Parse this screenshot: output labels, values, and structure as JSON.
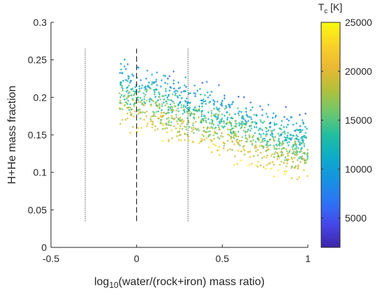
{
  "chart_data": {
    "type": "scatter",
    "title": "",
    "xlabel": {
      "prefix": "log",
      "subscript": "10",
      "suffix": "(water/(rock+iron) mass ratio)"
    },
    "ylabel": "H+He mass fraction",
    "xlim": [
      -0.5,
      1
    ],
    "ylim": [
      0,
      0.3
    ],
    "xticks": [
      -0.5,
      0,
      0.5,
      1
    ],
    "xtick_labels": [
      "-0.5",
      "0",
      "0.5",
      "1"
    ],
    "yticks": [
      0,
      0.05,
      0.1,
      0.15,
      0.2,
      0.25,
      0.3
    ],
    "ytick_labels": [
      "0",
      "0.05",
      "0.1",
      "0.15",
      "0.2",
      "0.25",
      "0.3"
    ],
    "grid": false,
    "marker": "+",
    "colormap": "parula",
    "colorbar": {
      "title_prefix": "T",
      "title_subscript": "c",
      "title_suffix": " [K]",
      "range": [
        2000,
        25000
      ],
      "ticks": [
        5000,
        10000,
        15000,
        20000,
        25000
      ],
      "tick_labels": [
        "5000",
        "10000",
        "15000",
        "20000",
        "25000"
      ]
    },
    "reference_lines": [
      {
        "x": -0.3,
        "style": "dotted",
        "y_range": [
          0.035,
          0.265
        ]
      },
      {
        "x": 0.0,
        "style": "dashed",
        "y_range": [
          0.035,
          0.265
        ]
      },
      {
        "x": 0.3,
        "style": "dotted",
        "y_range": [
          0.035,
          0.265
        ]
      }
    ],
    "point_cloud": {
      "n_points": 1150,
      "x_range": [
        -0.1,
        1.0
      ],
      "trend": "H+He mass fraction decreases as the water/(rock+iron) ratio increases, from about 0.20 at x=-0.1 to about 0.13 at x=1.0",
      "y_center_at_x_min": 0.205,
      "y_center_at_x_max": 0.13,
      "spread": 0.045,
      "temperature_pattern": "cooler points (blue/teal) concentrate in the upper part of the cloud, warmer points (yellow) in the lower part"
    }
  }
}
